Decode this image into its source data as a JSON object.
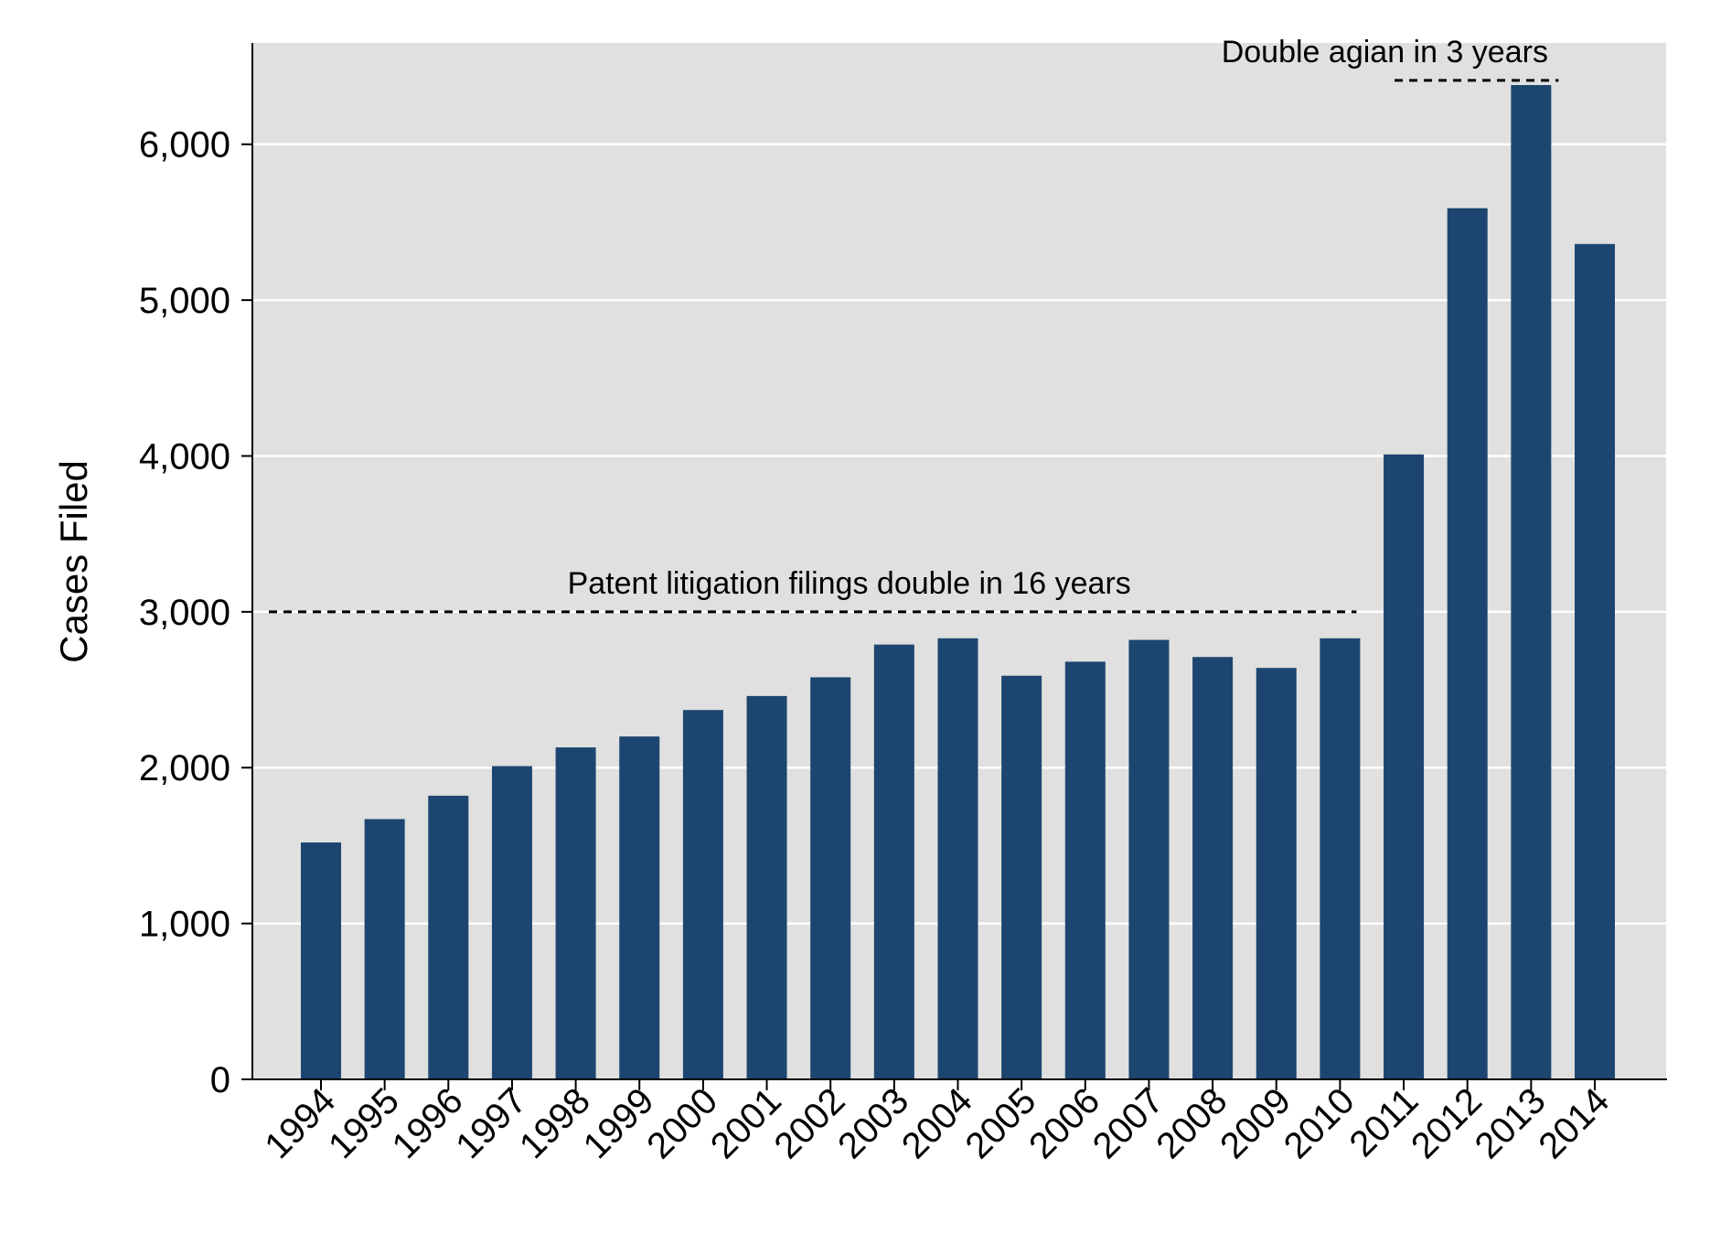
{
  "chart_data": {
    "type": "bar",
    "ylabel": "Cases Filed",
    "xlabel": "",
    "ylim": [
      0,
      6650
    ],
    "yticks": [
      0,
      1000,
      2000,
      3000,
      4000,
      5000,
      6000
    ],
    "ytick_labels": [
      "0",
      "1,000",
      "2,000",
      "3,000",
      "4,000",
      "5,000",
      "6,000"
    ],
    "grid": true,
    "colors": {
      "bar": "#1c466f",
      "plot_bg": "#e0e0e0",
      "grid": "#ffffff"
    },
    "categories": [
      "1994",
      "1995",
      "1996",
      "1997",
      "1998",
      "1999",
      "2000",
      "2001",
      "2002",
      "2003",
      "2004",
      "2005",
      "2006",
      "2007",
      "2008",
      "2009",
      "2010",
      "2011",
      "2012",
      "2013",
      "2014"
    ],
    "values": [
      1520,
      1670,
      1820,
      2010,
      2130,
      2200,
      2370,
      2460,
      2580,
      2790,
      2830,
      2590,
      2680,
      2820,
      2710,
      2640,
      2830,
      4010,
      5590,
      6380,
      5360
    ],
    "annotations": [
      {
        "text": "Patent litigation filings double in 16 years",
        "value": 3000,
        "from": "1994",
        "to": "2010"
      },
      {
        "text": "Double agian in 3 years",
        "value": 6410,
        "from": "2011",
        "to": "2013"
      }
    ]
  }
}
